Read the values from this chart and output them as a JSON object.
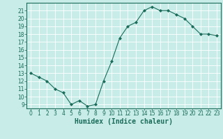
{
  "x": [
    0,
    1,
    2,
    3,
    4,
    5,
    6,
    7,
    8,
    9,
    10,
    11,
    12,
    13,
    14,
    15,
    16,
    17,
    18,
    19,
    20,
    21,
    22,
    23
  ],
  "y": [
    13,
    12.5,
    12,
    11,
    10.5,
    9,
    9.5,
    8.8,
    9,
    12,
    14.5,
    17.5,
    19,
    19.5,
    21,
    21.5,
    21,
    21,
    20.5,
    20,
    19,
    18,
    18,
    17.8
  ],
  "line_color": "#1a6b5a",
  "marker": "D",
  "marker_size": 2,
  "bg_color": "#c8ede8",
  "grid_color": "#aaddda",
  "xlabel": "Humidex (Indice chaleur)",
  "xlabel_fontsize": 7,
  "ylabel_ticks": [
    9,
    10,
    11,
    12,
    13,
    14,
    15,
    16,
    17,
    18,
    19,
    20,
    21
  ],
  "xlim": [
    -0.5,
    23.5
  ],
  "ylim": [
    8.5,
    22
  ],
  "tick_color": "#1a6b5a",
  "tick_fontsize": 5.5,
  "spine_color": "#1a6b5a"
}
